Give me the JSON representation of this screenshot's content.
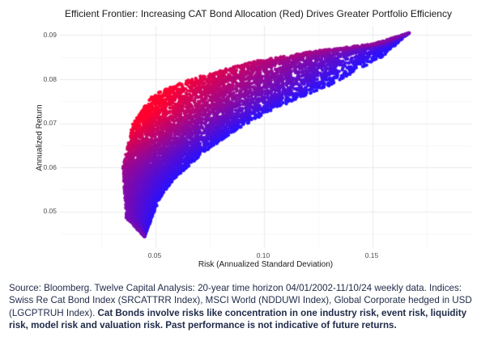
{
  "chart_data": {
    "type": "scatter",
    "title": "Efficient Frontier: Increasing CAT Bond Allocation (Red) Drives Greater Portfolio Efficiency",
    "xlabel": "Risk (Annualized Standard Deviation)",
    "ylabel": "Annualized Return",
    "xlim": [
      0.006,
      0.196
    ],
    "ylim": [
      0.0417,
      0.0921
    ],
    "x_ticks": [
      0.05,
      0.1,
      0.15
    ],
    "x_tick_labels": [
      "0.05",
      "0.10",
      "0.15"
    ],
    "y_ticks": [
      0.05,
      0.06,
      0.07,
      0.08,
      0.09
    ],
    "y_tick_labels": [
      "0.05",
      "0.06",
      "0.07",
      "0.08",
      "0.09"
    ],
    "grid": true,
    "legend": "none",
    "color_encoding": {
      "variable": "CAT Bond allocation",
      "high": "#ff0030",
      "low": "#2a12ff"
    },
    "region_upper_edge": [
      [
        0.0366,
        0.0485
      ],
      [
        0.035,
        0.06
      ],
      [
        0.0396,
        0.07
      ],
      [
        0.048,
        0.076
      ],
      [
        0.053,
        0.0775
      ],
      [
        0.068,
        0.0803
      ],
      [
        0.086,
        0.0828
      ],
      [
        0.097,
        0.0842
      ],
      [
        0.125,
        0.0865
      ],
      [
        0.15,
        0.088
      ],
      [
        0.167,
        0.0905
      ]
    ],
    "region_lower_edge": [
      [
        0.045,
        0.0443
      ],
      [
        0.052,
        0.053
      ],
      [
        0.058,
        0.057
      ],
      [
        0.072,
        0.0633
      ],
      [
        0.09,
        0.0693
      ],
      [
        0.105,
        0.0733
      ],
      [
        0.13,
        0.0785
      ],
      [
        0.155,
        0.0852
      ],
      [
        0.167,
        0.0905
      ]
    ],
    "key_points": {
      "min_return_portfolio": {
        "risk": 0.045,
        "return": 0.0443
      },
      "min_risk_portfolio": {
        "risk": 0.035,
        "return": 0.06
      },
      "max_return_portfolio": {
        "risk": 0.167,
        "return": 0.0905
      },
      "max_cat_bond_region": {
        "risk": 0.05,
        "return": 0.076
      }
    },
    "approx_point_count": 5000
  },
  "footer": {
    "normal": "Source: Bloomberg. Twelve Capital Analysis: 20-year time horizon 04/01/2002-11/10/24 weekly data. Indices: Swiss Re Cat Bond Index (SRCATTRR Index), MSCI World (NDDUWI Index), Global Corporate hedged in USD (LGCPTRUH Index). ",
    "bold": "Cat Bonds involve risks like concentration in one industry risk, event risk, liquidity risk, model risk and valuation risk. Past performance is not indicative of future returns."
  }
}
